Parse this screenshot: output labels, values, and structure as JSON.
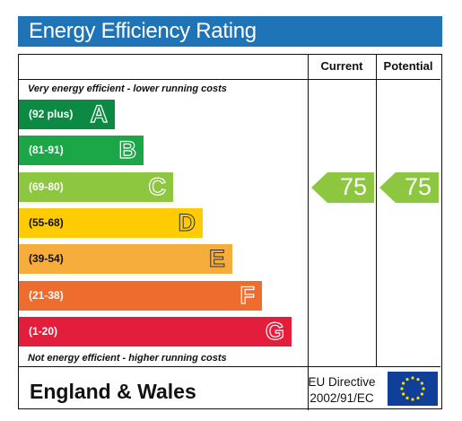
{
  "title": "Energy Efficiency Rating",
  "columns": {
    "current": "Current",
    "potential": "Potential"
  },
  "notes": {
    "top": "Very energy efficient - lower running costs",
    "bottom": "Not energy efficient - higher running costs"
  },
  "footer": {
    "region": "England & Wales",
    "directive_line1": "EU Directive",
    "directive_line2": "2002/91/EC",
    "flag_icon": "eu-flag-icon"
  },
  "chart_data": {
    "type": "bar",
    "categories": [
      "A",
      "B",
      "C",
      "D",
      "E",
      "F",
      "G"
    ],
    "ranges": [
      "(92 plus)",
      "(81-91)",
      "(69-80)",
      "(55-68)",
      "(39-54)",
      "(21-38)",
      "(1-20)"
    ],
    "colors": [
      "#0c8a43",
      "#1ba748",
      "#8dc63f",
      "#ffcc03",
      "#f7ad3b",
      "#ee6c2d",
      "#e31d3c"
    ],
    "current": {
      "value": 75,
      "band": "C",
      "color": "#8dc63f"
    },
    "potential": {
      "value": 75,
      "band": "C",
      "color": "#8dc63f"
    }
  }
}
